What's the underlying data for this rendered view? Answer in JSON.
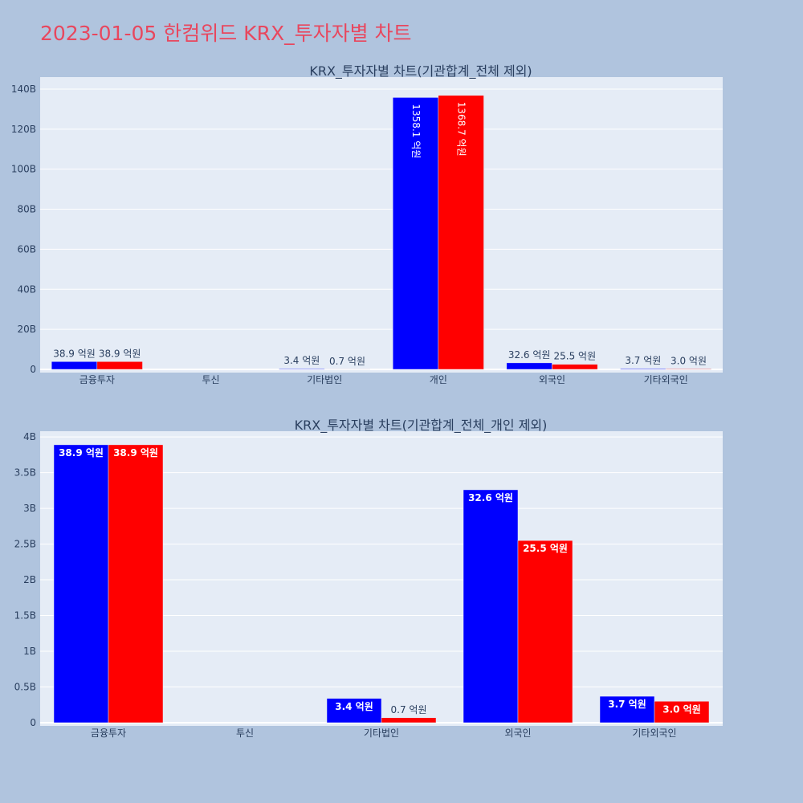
{
  "page": {
    "title": "2023-01-05 한컴위드 KRX_투자자별 차트"
  },
  "colors": {
    "buy": "#0000ff",
    "sell": "#ff0000"
  },
  "chart_data": [
    {
      "type": "bar",
      "title": "KRX_투자자별 차트(기관합계_전체 제외)",
      "categories": [
        "금융투자",
        "투신",
        "기타법인",
        "개인",
        "외국인",
        "기타외국인"
      ],
      "y_ticks": [
        "0",
        "20B",
        "40B",
        "60B",
        "80B",
        "100B",
        "120B",
        "140B"
      ],
      "ylim": [
        0,
        146000000000
      ],
      "grid": true,
      "series": [
        {
          "values": [
            3890000000,
            0,
            340000000,
            135810000000,
            3260000000,
            370000000
          ],
          "labels": [
            "38.9 억원",
            "",
            "3.4 억원",
            "1358.1 억원",
            "32.6 억원",
            "3.7 억원"
          ]
        },
        {
          "values": [
            3890000000,
            0,
            70000000,
            136870000000,
            2550000000,
            300000000
          ],
          "labels": [
            "38.9 억원",
            "",
            "0.7 억원",
            "1368.7 억원",
            "25.5 억원",
            "3.0 억원"
          ]
        }
      ]
    },
    {
      "type": "bar",
      "title": "KRX_투자자별 차트(기관합계_전체_개인 제외)",
      "categories": [
        "금융투자",
        "투신",
        "기타법인",
        "외국인",
        "기타외국인"
      ],
      "y_ticks": [
        "0",
        "0.5B",
        "1B",
        "1.5B",
        "2B",
        "2.5B",
        "3B",
        "3.5B",
        "4B"
      ],
      "ylim": [
        0,
        4080000000
      ],
      "grid": true,
      "series": [
        {
          "values": [
            3890000000,
            0,
            340000000,
            3260000000,
            370000000
          ],
          "labels": [
            "38.9 억원",
            "",
            "3.4 억원",
            "32.6 억원",
            "3.7 억원"
          ]
        },
        {
          "values": [
            3890000000,
            0,
            70000000,
            2550000000,
            300000000
          ],
          "labels": [
            "38.9 억원",
            "",
            "0.7 억원",
            "25.5 억원",
            "3.0 억원"
          ]
        }
      ]
    }
  ]
}
